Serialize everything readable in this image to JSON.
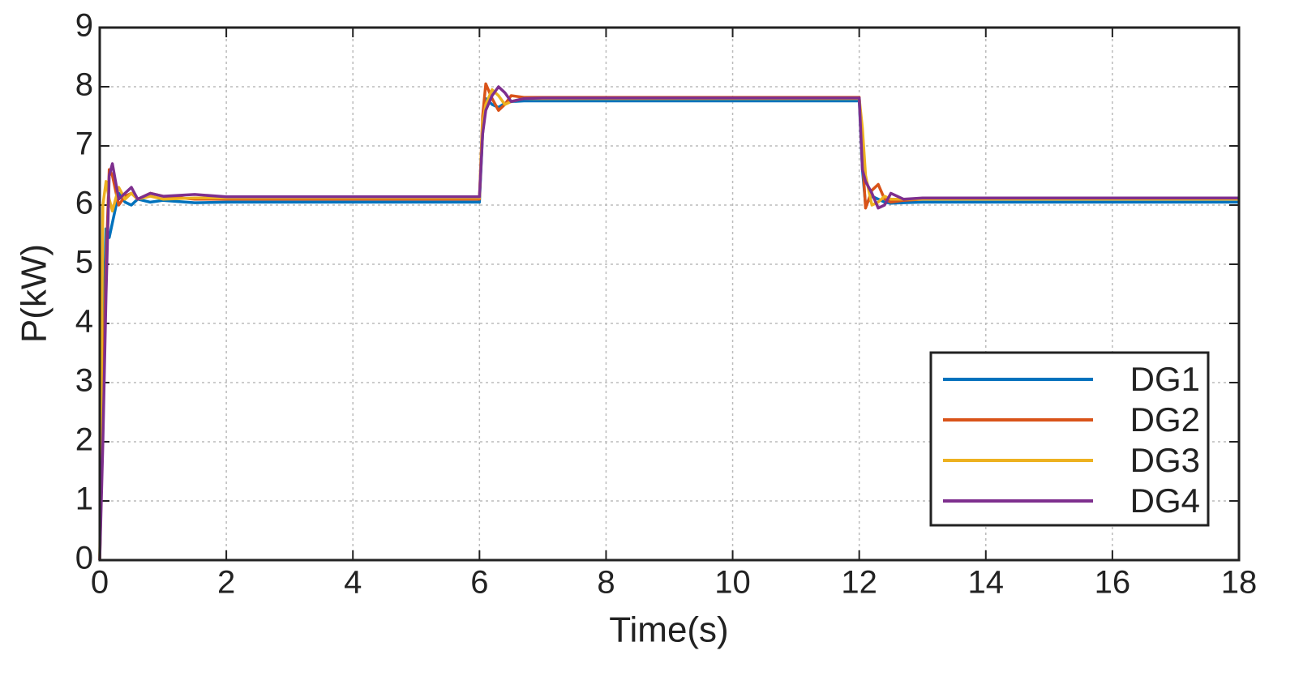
{
  "chart_data": {
    "type": "line",
    "xlabel": "Time(s)",
    "ylabel": "P(kW)",
    "x": [
      0,
      0.05,
      0.1,
      0.15,
      0.2,
      0.3,
      0.4,
      0.5,
      0.6,
      0.8,
      1.0,
      1.5,
      2,
      6,
      6.05,
      6.1,
      6.2,
      6.3,
      6.4,
      6.5,
      6.7,
      7,
      12,
      12.05,
      12.1,
      12.2,
      12.3,
      12.4,
      12.5,
      12.7,
      13,
      18
    ],
    "series": [
      {
        "name": "DG1",
        "color": "#0072bd",
        "values": [
          0,
          3.5,
          5.6,
          5.45,
          5.7,
          6.2,
          6.05,
          6.0,
          6.1,
          6.05,
          6.08,
          6.04,
          6.05,
          6.05,
          7.2,
          7.8,
          7.7,
          7.65,
          7.72,
          7.75,
          7.76,
          7.76,
          7.76,
          6.6,
          6.0,
          6.15,
          6.1,
          6.05,
          6.03,
          6.04,
          6.05,
          6.05
        ]
      },
      {
        "name": "DG2",
        "color": "#d95319",
        "values": [
          0,
          2.5,
          5.0,
          6.6,
          6.5,
          6.0,
          6.15,
          6.2,
          6.1,
          6.2,
          6.15,
          6.1,
          6.1,
          6.1,
          7.5,
          8.05,
          7.8,
          7.6,
          7.7,
          7.85,
          7.82,
          7.82,
          7.82,
          6.8,
          5.95,
          6.25,
          6.35,
          6.1,
          6.05,
          6.08,
          6.1,
          6.1
        ]
      },
      {
        "name": "DG3",
        "color": "#edb120",
        "values": [
          0,
          6.0,
          6.4,
          6.1,
          5.9,
          6.3,
          6.1,
          6.2,
          6.1,
          6.15,
          6.1,
          6.12,
          6.12,
          6.12,
          7.4,
          7.7,
          7.95,
          7.85,
          7.7,
          7.75,
          7.8,
          7.8,
          7.8,
          7.3,
          6.5,
          6.0,
          6.05,
          6.15,
          6.1,
          6.1,
          6.1,
          6.1
        ]
      },
      {
        "name": "DG4",
        "color": "#7e2f8e",
        "values": [
          0,
          2.0,
          4.5,
          6.5,
          6.7,
          6.1,
          6.2,
          6.3,
          6.1,
          6.2,
          6.15,
          6.18,
          6.14,
          6.14,
          7.2,
          7.6,
          7.85,
          8.0,
          7.9,
          7.75,
          7.8,
          7.81,
          7.81,
          6.6,
          6.4,
          6.2,
          5.95,
          6.0,
          6.2,
          6.1,
          6.12,
          6.12
        ]
      }
    ],
    "xlim": [
      0,
      18
    ],
    "xticks": [
      0,
      2,
      4,
      6,
      8,
      10,
      12,
      14,
      16,
      18
    ],
    "ylim": [
      0,
      9
    ],
    "yticks": [
      0,
      1,
      2,
      3,
      4,
      5,
      6,
      7,
      8,
      9
    ],
    "grid": true,
    "legend": "lower right"
  }
}
